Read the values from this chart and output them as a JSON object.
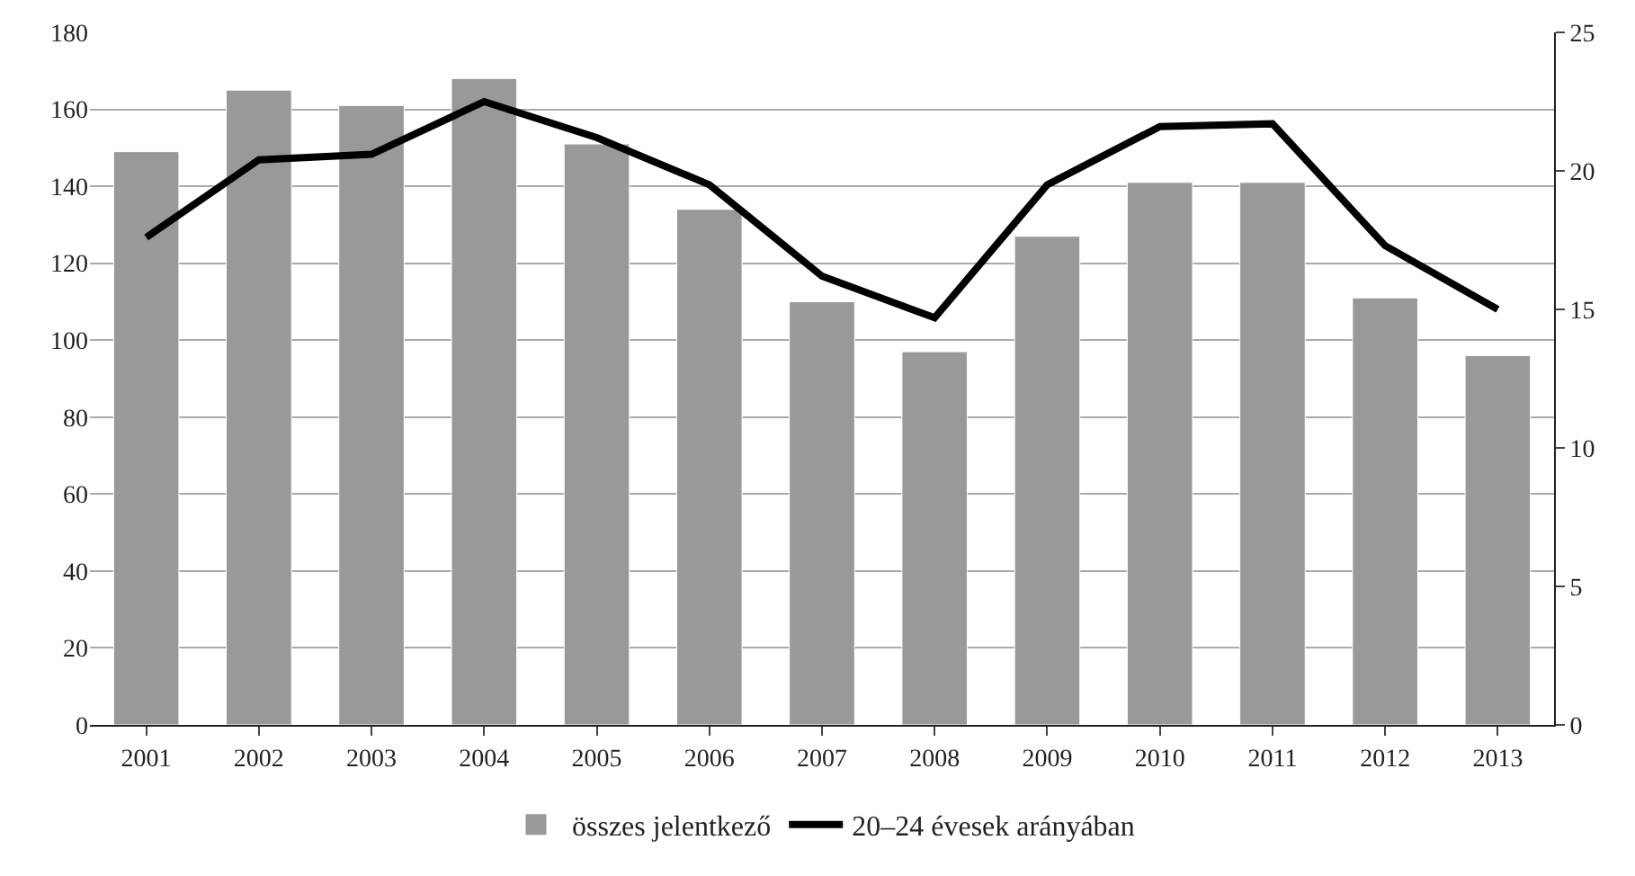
{
  "chart_data": {
    "type": "bar",
    "categories": [
      "2001",
      "2002",
      "2003",
      "2004",
      "2005",
      "2006",
      "2007",
      "2008",
      "2009",
      "2010",
      "2011",
      "2012",
      "2013"
    ],
    "series": [
      {
        "name": "összes jelentkező",
        "color": "#999999",
        "values": [
          149,
          165,
          161,
          168,
          151,
          134,
          110,
          97,
          127,
          141,
          141,
          111,
          96
        ]
      },
      {
        "name": "20–24 évesek arányában",
        "color": "#000000",
        "type": "line",
        "axis": "y2",
        "values": [
          17.6,
          20.4,
          20.6,
          22.5,
          21.2,
          19.5,
          16.2,
          14.7,
          19.5,
          21.6,
          21.7,
          17.3,
          15.0
        ]
      }
    ],
    "ylim": [
      0,
      180
    ],
    "yticks": [
      0,
      20,
      40,
      60,
      80,
      100,
      120,
      140,
      160,
      180
    ],
    "y2lim": [
      0,
      25
    ],
    "y2ticks": [
      0,
      5,
      10,
      15,
      20,
      25
    ],
    "grid": "y",
    "legend": "bottom",
    "marker": "none",
    "line_style": "solid"
  }
}
